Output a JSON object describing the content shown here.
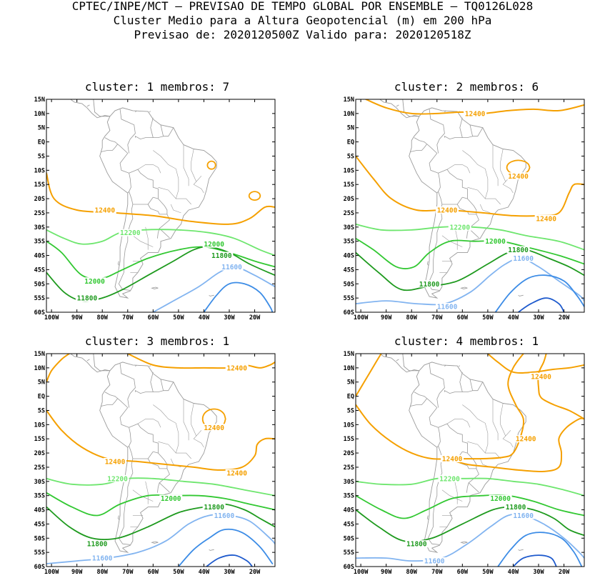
{
  "header": {
    "line1": "CPTEC/INPE/MCT – PREVISAO DE TEMPO GLOBAL POR ENSEMBLE – TQ0126L028",
    "line2": "Cluster Medio para a Altura Geopotencial (m) em 200 hPa",
    "line3": "Previsao de: 2020120500Z   Valido para: 2020120518Z"
  },
  "axes": {
    "lat_labels": [
      "15N",
      "10N",
      "5N",
      "EQ",
      "5S",
      "10S",
      "15S",
      "20S",
      "25S",
      "30S",
      "35S",
      "40S",
      "45S",
      "50S",
      "55S",
      "60S"
    ],
    "lon_labels": [
      "100W",
      "90W",
      "80W",
      "70W",
      "60W",
      "50W",
      "40W",
      "30W",
      "20W"
    ]
  },
  "colors": {
    "c12400": "#f5a000",
    "c12200": "#6ee66e",
    "c12000": "#32c832",
    "c11800": "#1e9a1e",
    "c11600": "#82b4f0",
    "c11400": "#3c8ce6",
    "c11200": "#1e5acd",
    "coast": "#9a9a9a"
  },
  "panels": [
    {
      "title": "cluster: 1   membros: 7",
      "labels": [
        {
          "text": "12400",
          "lon": -79,
          "lat": -24,
          "c": "c12400"
        },
        {
          "text": "12200",
          "lon": -69,
          "lat": -32,
          "c": "c12200"
        },
        {
          "text": "12000",
          "lon": -36,
          "lat": -36,
          "c": "c12000"
        },
        {
          "text": "11800",
          "lon": -33,
          "lat": -40,
          "c": "c11800"
        },
        {
          "text": "11600",
          "lon": -29,
          "lat": -44,
          "c": "c11600"
        },
        {
          "text": "12000",
          "lon": -83,
          "lat": -49,
          "c": "c12000"
        },
        {
          "text": "11800",
          "lon": -86,
          "lat": -55,
          "c": "c11800"
        }
      ]
    },
    {
      "title": "cluster: 2   membros: 6",
      "labels": [
        {
          "text": "12400",
          "lon": -55,
          "lat": 10,
          "c": "c12400"
        },
        {
          "text": "12400",
          "lon": -38,
          "lat": -12,
          "c": "c12400"
        },
        {
          "text": "12400",
          "lon": -66,
          "lat": -24,
          "c": "c12400"
        },
        {
          "text": "12400",
          "lon": -27,
          "lat": -27,
          "c": "c12400"
        },
        {
          "text": "12200",
          "lon": -61,
          "lat": -30,
          "c": "c12200"
        },
        {
          "text": "12000",
          "lon": -47,
          "lat": -35,
          "c": "c12000"
        },
        {
          "text": "11800",
          "lon": -38,
          "lat": -38,
          "c": "c11800"
        },
        {
          "text": "11600",
          "lon": -36,
          "lat": -41,
          "c": "c11600"
        },
        {
          "text": "11800",
          "lon": -73,
          "lat": -50,
          "c": "c11800"
        },
        {
          "text": "11600",
          "lon": -66,
          "lat": -58,
          "c": "c11600"
        }
      ]
    },
    {
      "title": "cluster: 3   membros: 1",
      "labels": [
        {
          "text": "12400",
          "lon": -27,
          "lat": 10,
          "c": "c12400"
        },
        {
          "text": "12400",
          "lon": -36,
          "lat": -11,
          "c": "c12400"
        },
        {
          "text": "12400",
          "lon": -75,
          "lat": -23,
          "c": "c12400"
        },
        {
          "text": "12400",
          "lon": -27,
          "lat": -27,
          "c": "c12400"
        },
        {
          "text": "12200",
          "lon": -74,
          "lat": -29,
          "c": "c12200"
        },
        {
          "text": "12000",
          "lon": -53,
          "lat": -36,
          "c": "c12000"
        },
        {
          "text": "11800",
          "lon": -36,
          "lat": -39,
          "c": "c11800"
        },
        {
          "text": "11600",
          "lon": -32,
          "lat": -42,
          "c": "c11600"
        },
        {
          "text": "11800",
          "lon": -82,
          "lat": -52,
          "c": "c11800"
        },
        {
          "text": "11600",
          "lon": -80,
          "lat": -57,
          "c": "c11600"
        }
      ]
    },
    {
      "title": "cluster: 4   membros: 1",
      "labels": [
        {
          "text": "12400",
          "lon": -29,
          "lat": 7,
          "c": "c12400"
        },
        {
          "text": "12400",
          "lon": -35,
          "lat": -15,
          "c": "c12400"
        },
        {
          "text": "12400",
          "lon": -64,
          "lat": -22,
          "c": "c12400"
        },
        {
          "text": "12200",
          "lon": -65,
          "lat": -29,
          "c": "c12200"
        },
        {
          "text": "12000",
          "lon": -45,
          "lat": -36,
          "c": "c12000"
        },
        {
          "text": "11800",
          "lon": -39,
          "lat": -39,
          "c": "c11800"
        },
        {
          "text": "11600",
          "lon": -36,
          "lat": -42,
          "c": "c11600"
        },
        {
          "text": "11800",
          "lon": -78,
          "lat": -52,
          "c": "c11800"
        },
        {
          "text": "11600",
          "lon": -71,
          "lat": -58,
          "c": "c11600"
        }
      ]
    }
  ]
}
